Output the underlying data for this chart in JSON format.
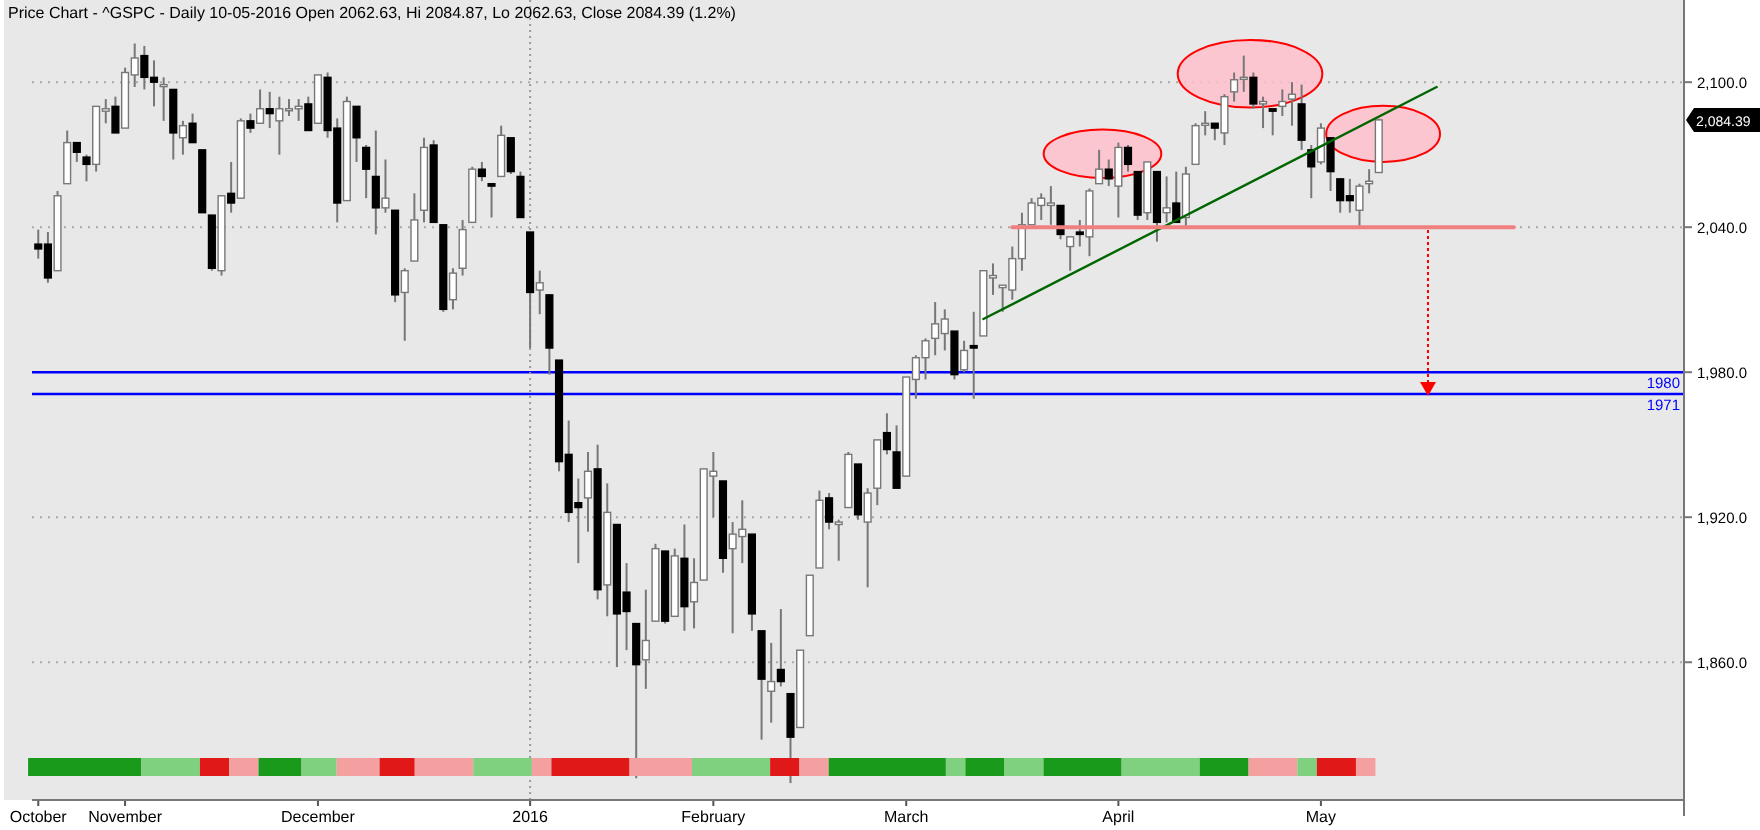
{
  "chart_data": {
    "type": "candlestick",
    "title": "Price Chart - ^GSPC - Daily 10-05-2016 Open 2062.63, Hi 2084.87, Lo 2062.63, Close 2084.39 (1.2%)",
    "categories": [
      "October",
      null,
      null,
      null,
      null,
      null,
      null,
      null,
      null,
      "November",
      null,
      null,
      null,
      null,
      null,
      null,
      null,
      null,
      null,
      null,
      null,
      null,
      null,
      null,
      null,
      null,
      null,
      null,
      null,
      "December",
      null,
      null,
      null,
      null,
      null,
      null,
      null,
      null,
      null,
      null,
      null,
      null,
      null,
      null,
      null,
      null,
      null,
      null,
      null,
      null,
      null,
      "2016",
      null,
      null,
      null,
      null,
      null,
      null,
      null,
      null,
      null,
      null,
      null,
      null,
      null,
      null,
      null,
      null,
      null,
      null,
      "February",
      null,
      null,
      null,
      null,
      null,
      null,
      null,
      null,
      null,
      null,
      null,
      null,
      null,
      null,
      null,
      null,
      null,
      null,
      null,
      "March",
      null,
      null,
      null,
      null,
      null,
      null,
      null,
      null,
      null,
      null,
      null,
      null,
      null,
      null,
      null,
      null,
      null,
      null,
      null,
      null,
      null,
      "April",
      null,
      null,
      null,
      null,
      null,
      null,
      null,
      null,
      null,
      null,
      null,
      null,
      null,
      null,
      null,
      null,
      null,
      null,
      null,
      null,
      "May",
      null,
      null,
      null,
      null,
      null,
      null,
      null,
      null,
      null,
      null,
      null,
      null,
      null,
      null,
      null,
      null,
      null,
      null,
      null,
      null,
      null,
      null,
      null,
      null,
      null,
      null,
      null,
      null,
      null,
      null,
      null,
      null,
      null,
      null,
      null,
      null,
      null
    ],
    "ohlc": [
      [
        2033,
        2039,
        2027,
        2031
      ],
      [
        2033,
        2038,
        2017,
        2019
      ],
      [
        2022,
        2055,
        2022,
        2053
      ],
      [
        2058,
        2080,
        2058,
        2075
      ],
      [
        2075,
        2075,
        2067,
        2071
      ],
      [
        2069,
        2070,
        2059,
        2066
      ],
      [
        2066,
        2090,
        2063,
        2090
      ],
      [
        2088,
        2093,
        2083,
        2089
      ],
      [
        2090,
        2094,
        2079,
        2079
      ],
      [
        2081,
        2106,
        2081,
        2104
      ],
      [
        2103,
        2116,
        2098,
        2110
      ],
      [
        2111,
        2115,
        2097,
        2102
      ],
      [
        2102,
        2109,
        2090,
        2100
      ],
      [
        2099,
        2102,
        2084,
        2099
      ],
      [
        2097,
        2097,
        2068,
        2079
      ],
      [
        2077,
        2084,
        2070,
        2082
      ],
      [
        2083,
        2087,
        2075,
        2075
      ],
      [
        2072,
        2072,
        2046,
        2046
      ],
      [
        2045,
        2045,
        2022,
        2023
      ],
      [
        2022,
        2053,
        2020,
        2053
      ],
      [
        2054,
        2067,
        2046,
        2050
      ],
      [
        2052,
        2085,
        2052,
        2084
      ],
      [
        2084,
        2087,
        2079,
        2081
      ],
      [
        2083,
        2097,
        2083,
        2089
      ],
      [
        2089,
        2096,
        2081,
        2087
      ],
      [
        2084,
        2094,
        2070,
        2089
      ],
      [
        2089,
        2093,
        2086,
        2089
      ],
      [
        2089,
        2093,
        2084,
        2090
      ],
      [
        2091,
        2094,
        2080,
        2080
      ],
      [
        2083,
        2103,
        2083,
        2103
      ],
      [
        2102,
        2104,
        2077,
        2080
      ],
      [
        2081,
        2085,
        2042,
        2050
      ],
      [
        2051,
        2094,
        2051,
        2092
      ],
      [
        2090,
        2090,
        2067,
        2077
      ],
      [
        2073,
        2074,
        2052,
        2064
      ],
      [
        2061,
        2080,
        2037,
        2048
      ],
      [
        2048,
        2068,
        2046,
        2052
      ],
      [
        2047,
        2047,
        2009,
        2012
      ],
      [
        2013,
        2023,
        1993,
        2022
      ],
      [
        2026,
        2054,
        2026,
        2043
      ],
      [
        2047,
        2077,
        2042,
        2073
      ],
      [
        2074,
        2076,
        2042,
        2042
      ],
      [
        2041,
        2041,
        2005,
        2006
      ],
      [
        2010,
        2023,
        2006,
        2021
      ],
      [
        2023,
        2043,
        2020,
        2039
      ],
      [
        2042,
        2065,
        2042,
        2064
      ],
      [
        2064,
        2067,
        2059,
        2061
      ],
      [
        2058,
        2058,
        2044,
        2057
      ],
      [
        2061,
        2082,
        2061,
        2078
      ],
      [
        2077,
        2077,
        2062,
        2063
      ],
      [
        2061,
        2063,
        2044,
        2044
      ],
      [
        2038,
        2038,
        1990,
        2013
      ],
      [
        2014,
        2022,
        2004,
        2017
      ],
      [
        2012,
        2012,
        1979,
        1990
      ],
      [
        1985,
        1985,
        1939,
        1943
      ],
      [
        1946,
        1960,
        1918,
        1922
      ],
      [
        1926,
        1936,
        1901,
        1924
      ],
      [
        1928,
        1947,
        1914,
        1939
      ],
      [
        1940,
        1950,
        1886,
        1890
      ],
      [
        1892,
        1934,
        1879,
        1922
      ],
      [
        1917,
        1917,
        1858,
        1880
      ],
      [
        1889,
        1901,
        1865,
        1881
      ],
      [
        1876,
        1876,
        1812,
        1859
      ],
      [
        1861,
        1890,
        1849,
        1869
      ],
      [
        1877,
        1909,
        1877,
        1907
      ],
      [
        1906,
        1906,
        1876,
        1877
      ],
      [
        1879,
        1907,
        1879,
        1904
      ],
      [
        1903,
        1917,
        1873,
        1883
      ],
      [
        1885,
        1903,
        1874,
        1893
      ],
      [
        1894,
        1940,
        1894,
        1940
      ],
      [
        1937,
        1947,
        1920,
        1939
      ],
      [
        1935,
        1935,
        1897,
        1903
      ],
      [
        1907,
        1918,
        1872,
        1913
      ],
      [
        1912,
        1927,
        1901,
        1915
      ],
      [
        1913,
        1913,
        1873,
        1880
      ],
      [
        1873,
        1873,
        1828,
        1853
      ],
      [
        1848,
        1868,
        1835,
        1852
      ],
      [
        1857,
        1882,
        1850,
        1852
      ],
      [
        1847,
        1847,
        1810,
        1829
      ],
      [
        1833,
        1865,
        1833,
        1865
      ],
      [
        1871,
        1896,
        1871,
        1896
      ],
      [
        1899,
        1931,
        1899,
        1927
      ],
      [
        1928,
        1930,
        1915,
        1918
      ],
      [
        1917,
        1919,
        1902,
        1918
      ],
      [
        1924,
        1947,
        1924,
        1946
      ],
      [
        1942,
        1942,
        1919,
        1921
      ],
      [
        1918,
        1932,
        1891,
        1930
      ],
      [
        1932,
        1952,
        1925,
        1952
      ],
      [
        1955,
        1963,
        1946,
        1948
      ],
      [
        1947,
        1958,
        1932,
        1932
      ],
      [
        1937,
        1978,
        1937,
        1978
      ],
      [
        1977,
        1987,
        1969,
        1986
      ],
      [
        1986,
        1994,
        1977,
        1993
      ],
      [
        1994,
        2009,
        1987,
        2000
      ],
      [
        1996,
        2006,
        1989,
        2002
      ],
      [
        1997,
        1997,
        1977,
        1979
      ],
      [
        1981,
        1993,
        1980,
        1989
      ],
      [
        1991,
        2005,
        1969,
        1990
      ],
      [
        1995,
        2022,
        1995,
        2022
      ],
      [
        2019,
        2025,
        2012,
        2020
      ],
      [
        2015,
        2016,
        2005,
        2016
      ],
      [
        2014,
        2032,
        2010,
        2027
      ],
      [
        2027,
        2046,
        2022,
        2041
      ],
      [
        2041,
        2052,
        2041,
        2050
      ],
      [
        2049,
        2054,
        2043,
        2052
      ],
      [
        2049,
        2057,
        2041,
        2050
      ],
      [
        2049,
        2049,
        2035,
        2037
      ],
      [
        2032,
        2036,
        2022,
        2036
      ],
      [
        2038,
        2043,
        2032,
        2037
      ],
      [
        2036,
        2056,
        2028,
        2055
      ],
      [
        2058,
        2072,
        2058,
        2064
      ],
      [
        2064,
        2068,
        2057,
        2060
      ],
      [
        2057,
        2075,
        2044,
        2073
      ],
      [
        2073,
        2074,
        2063,
        2066
      ],
      [
        2063,
        2063,
        2043,
        2045
      ],
      [
        2046,
        2067,
        2043,
        2067
      ],
      [
        2063,
        2063,
        2034,
        2042
      ],
      [
        2046,
        2061,
        2042,
        2048
      ],
      [
        2050,
        2063,
        2042,
        2042
      ],
      [
        2044,
        2065,
        2040,
        2062
      ],
      [
        2066,
        2083,
        2066,
        2082
      ],
      [
        2083,
        2088,
        2078,
        2083
      ],
      [
        2083,
        2083,
        2076,
        2081
      ],
      [
        2079,
        2095,
        2074,
        2094
      ],
      [
        2096,
        2104,
        2092,
        2101
      ],
      [
        2102,
        2111,
        2096,
        2102
      ],
      [
        2102,
        2104,
        2089,
        2091
      ],
      [
        2091,
        2094,
        2081,
        2092
      ],
      [
        2089,
        2089,
        2078,
        2088
      ],
      [
        2090,
        2097,
        2086,
        2092
      ],
      [
        2093,
        2100,
        2082,
        2095
      ],
      [
        2091,
        2099,
        2072,
        2076
      ],
      [
        2072,
        2074,
        2052,
        2065
      ],
      [
        2067,
        2083,
        2066,
        2081
      ],
      [
        2077,
        2077,
        2055,
        2063
      ],
      [
        2060,
        2060,
        2046,
        2051
      ],
      [
        2053,
        2060,
        2046,
        2051
      ],
      [
        2047,
        2058,
        2040,
        2057
      ],
      [
        2058,
        2064,
        2054,
        2059
      ],
      [
        2062.63,
        2084.87,
        2062.63,
        2084.39
      ],
      null,
      null,
      null,
      null,
      null,
      null,
      null,
      null,
      null,
      null,
      null,
      null,
      null,
      null,
      null,
      null,
      null,
      null,
      null,
      null,
      null,
      null,
      null,
      null,
      null,
      null,
      null,
      null,
      null,
      null,
      null
    ],
    "series": [
      {
        "type": "line",
        "color": "#006600",
        "values": [
          null,
          null,
          null,
          null,
          null,
          null,
          null,
          null,
          null,
          null,
          null,
          null,
          null,
          null,
          null,
          null,
          null,
          null,
          null,
          null,
          null,
          null,
          null,
          null,
          null,
          null,
          null,
          null,
          null,
          null,
          null,
          null,
          null,
          null,
          null,
          null,
          null,
          null,
          null,
          null,
          null,
          null,
          null,
          null,
          null,
          null,
          null,
          null,
          null,
          null,
          null,
          null,
          null,
          null,
          null,
          null,
          null,
          null,
          null,
          null,
          null,
          null,
          null,
          null,
          null,
          null,
          null,
          null,
          null,
          null,
          null,
          null,
          null,
          null,
          null,
          null,
          null,
          null,
          null,
          null,
          null,
          null,
          null,
          null,
          null,
          null,
          null,
          null,
          null,
          null,
          null,
          null,
          null,
          null,
          null,
          null,
          null,
          null,
          2002,
          null,
          null,
          null,
          null,
          null,
          null,
          null,
          null,
          null,
          null,
          null,
          null,
          null,
          null,
          null,
          null,
          null,
          null,
          null,
          null,
          null,
          null,
          null,
          null,
          null,
          null,
          null,
          null,
          null,
          null,
          null,
          null,
          null,
          null,
          null,
          null,
          null,
          null,
          null,
          null,
          null,
          null,
          null,
          null,
          null,
          null,
          2098,
          null,
          null,
          null,
          null,
          null,
          null,
          null,
          null,
          null,
          null,
          null,
          null,
          null,
          null,
          null,
          null,
          null,
          null,
          null,
          null,
          null,
          null,
          null,
          null,
          null
        ]
      },
      {
        "type": "line",
        "color": "#f08080",
        "values": [
          null,
          null,
          null,
          null,
          null,
          null,
          null,
          null,
          null,
          null,
          null,
          null,
          null,
          null,
          null,
          null,
          null,
          null,
          null,
          null,
          null,
          null,
          null,
          null,
          null,
          null,
          null,
          null,
          null,
          null,
          null,
          null,
          null,
          null,
          null,
          null,
          null,
          null,
          null,
          null,
          null,
          null,
          null,
          null,
          null,
          null,
          null,
          null,
          null,
          null,
          null,
          null,
          null,
          null,
          null,
          null,
          null,
          null,
          null,
          null,
          null,
          null,
          null,
          null,
          null,
          null,
          null,
          null,
          null,
          null,
          null,
          null,
          null,
          null,
          null,
          null,
          null,
          null,
          null,
          null,
          null,
          null,
          null,
          null,
          null,
          null,
          null,
          null,
          null,
          null,
          null,
          null,
          null,
          null,
          null,
          null,
          null,
          null,
          null,
          null,
          null,
          2040,
          null,
          null,
          null,
          null,
          null,
          null,
          null,
          null,
          null,
          null,
          null,
          null,
          null,
          null,
          null,
          null,
          null,
          null,
          null,
          null,
          null,
          null,
          null,
          null,
          null,
          null,
          null,
          null,
          null,
          null,
          null,
          null,
          null,
          null,
          null,
          null,
          null,
          null,
          null,
          null,
          null,
          null,
          null,
          null,
          null,
          null,
          null,
          null,
          null,
          null,
          null,
          2040,
          null,
          null,
          null,
          null,
          null,
          null,
          null,
          null,
          null,
          null,
          null,
          null,
          null,
          null,
          null,
          null,
          null
        ]
      }
    ],
    "ylim": [
      1803,
      2134
    ],
    "yticks": [
      {
        "value": 1860,
        "label": "1,860.0"
      },
      {
        "value": 1920,
        "label": "1,920.0"
      },
      {
        "value": 1980,
        "label": "1,980.0"
      },
      {
        "value": 2040,
        "label": "2,040.0"
      },
      {
        "value": 2100,
        "label": "2,100.0"
      }
    ],
    "grid": "y",
    "ref_lines": [
      {
        "axis": "y",
        "value": 1980,
        "label": "1980",
        "color": "#0000ff"
      },
      {
        "axis": "y",
        "value": 1971,
        "label": "1971",
        "color": "#0000ff"
      },
      {
        "axis": "x",
        "value": "2016",
        "color": "#999999",
        "line_style": "dotted"
      }
    ],
    "annotations": [
      "2,084.39"
    ]
  }
}
